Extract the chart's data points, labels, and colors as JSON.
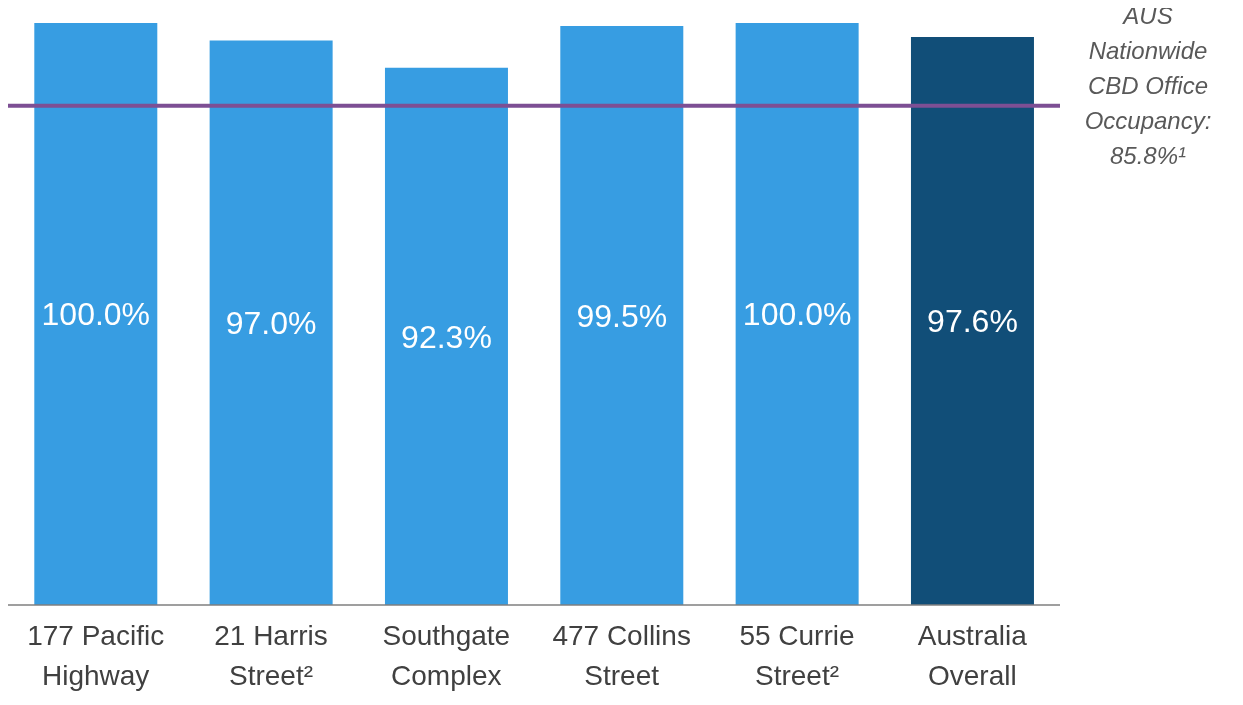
{
  "chart_data": {
    "type": "bar",
    "categories": [
      "177 Pacific Highway",
      "21 Harris Street²",
      "Southgate Complex",
      "477 Collins Street",
      "55 Currie Street²",
      "Australia Overall"
    ],
    "values": [
      100.0,
      97.0,
      92.3,
      99.5,
      100.0,
      97.6
    ],
    "colors": [
      "#379de2",
      "#379de2",
      "#379de2",
      "#379de2",
      "#379de2",
      "#114e78"
    ],
    "value_labels": [
      "100.0%",
      "97.0%",
      "92.3%",
      "99.5%",
      "100.0%",
      "97.6%"
    ],
    "ref_lines": [
      {
        "axis": "y",
        "value": 85.8,
        "label": "AUS Nationwide CBD Office Occupancy: 85.8%¹",
        "color": "#7d4f94"
      }
    ],
    "grid": false,
    "legend": false
  }
}
